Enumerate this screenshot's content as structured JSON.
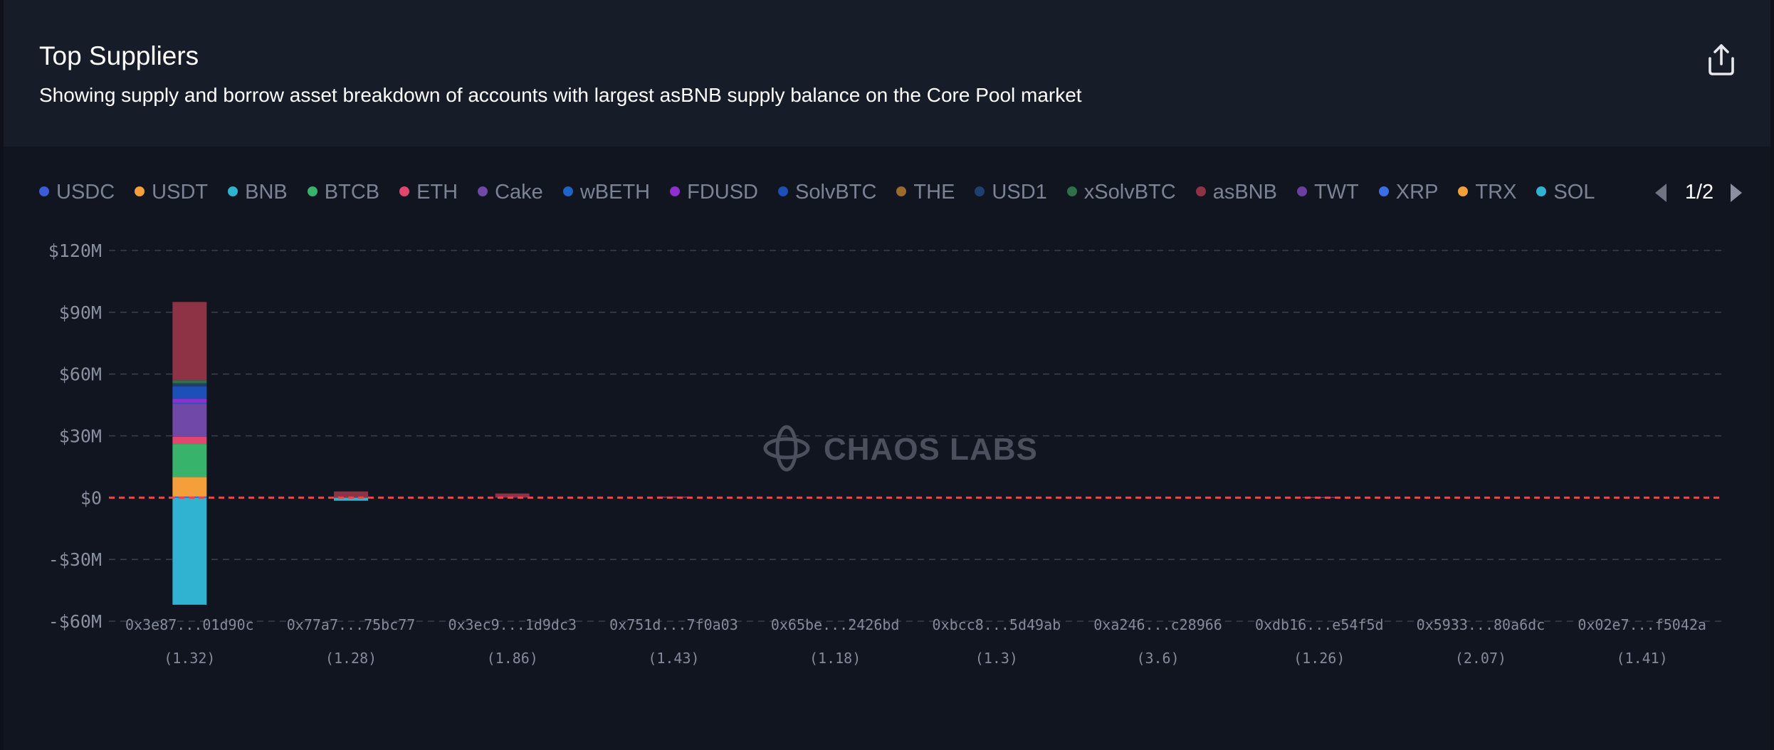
{
  "header": {
    "title": "Top Suppliers",
    "subtitle": "Showing supply and borrow asset breakdown of accounts with largest asBNB supply balance on the Core Pool market"
  },
  "icons": {
    "share": "share-export-icon",
    "prev": "chevron-left-icon",
    "next": "chevron-right-icon"
  },
  "pager": {
    "text": "1/2"
  },
  "watermark": {
    "text": "CHAOS LABS"
  },
  "legend": [
    {
      "name": "USDC",
      "color": "#3b5bdb"
    },
    {
      "name": "USDT",
      "color": "#f59f3a"
    },
    {
      "name": "BNB",
      "color": "#2fb3d1"
    },
    {
      "name": "BTCB",
      "color": "#37b36b"
    },
    {
      "name": "ETH",
      "color": "#e0466e"
    },
    {
      "name": "Cake",
      "color": "#7048a8"
    },
    {
      "name": "wBETH",
      "color": "#1f63c9"
    },
    {
      "name": "FDUSD",
      "color": "#8f2fcf"
    },
    {
      "name": "SolvBTC",
      "color": "#1d4fb8"
    },
    {
      "name": "THE",
      "color": "#9a6a2e"
    },
    {
      "name": "USD1",
      "color": "#1f3f70"
    },
    {
      "name": "xSolvBTC",
      "color": "#2f6f4a"
    },
    {
      "name": "asBNB",
      "color": "#8e3346"
    },
    {
      "name": "TWT",
      "color": "#6a3fa0"
    },
    {
      "name": "XRP",
      "color": "#3a6ee6"
    },
    {
      "name": "TRX",
      "color": "#f59f3a"
    },
    {
      "name": "SOL",
      "color": "#2fb3d1"
    }
  ],
  "chart_data": {
    "type": "bar",
    "stacked": true,
    "title": "Top Suppliers",
    "ylim": [
      -60,
      120
    ],
    "yticks": [
      -60,
      -30,
      0,
      30,
      60,
      90,
      120
    ],
    "ytick_labels": [
      "-$60M",
      "-$30M",
      "$0",
      "$30M",
      "$60M",
      "$90M",
      "$120M"
    ],
    "grid": true,
    "zero_line_color": "#e5484d",
    "categories": [
      "0x3e87...01d90c",
      "0x77a7...75bc77",
      "0x3ec9...1d9dc3",
      "0x751d...7f0a03",
      "0x65be...2426bd",
      "0xbcc8...5d49ab",
      "0xa246...c28966",
      "0xdb16...e54f5d",
      "0x5933...80a6dc",
      "0x02e7...f5042a"
    ],
    "sub_labels": [
      "(1.32)",
      "(1.28)",
      "(1.86)",
      "(1.43)",
      "(1.18)",
      "(1.3)",
      "(3.6)",
      "(1.26)",
      "(2.07)",
      "(1.41)"
    ],
    "series": [
      {
        "name": "USDC",
        "color": "#3b5bdb",
        "values": [
          0.5,
          0,
          0,
          0,
          0,
          0,
          0,
          0,
          0,
          0
        ]
      },
      {
        "name": "USDT",
        "color": "#f59f3a",
        "values": [
          9.5,
          0,
          0,
          0,
          0,
          0,
          0,
          0,
          0,
          0
        ]
      },
      {
        "name": "BNB",
        "color": "#2fb3d1",
        "values": [
          -52,
          -1.5,
          0,
          0,
          0,
          0,
          0,
          0,
          0,
          0
        ]
      },
      {
        "name": "BTCB",
        "color": "#37b36b",
        "values": [
          16,
          0,
          0,
          0,
          0,
          0,
          0,
          0,
          0,
          0
        ]
      },
      {
        "name": "ETH",
        "color": "#e0466e",
        "values": [
          3.5,
          0,
          0,
          0,
          0,
          0,
          0,
          0,
          0,
          0
        ]
      },
      {
        "name": "Cake",
        "color": "#7048a8",
        "values": [
          16,
          0,
          0,
          0,
          0,
          0,
          0,
          0,
          0,
          0
        ]
      },
      {
        "name": "wBETH",
        "color": "#1f63c9",
        "values": [
          0.5,
          0,
          0,
          0,
          0,
          0,
          0,
          0,
          0,
          0
        ]
      },
      {
        "name": "FDUSD",
        "color": "#8f2fcf",
        "values": [
          2,
          0,
          0,
          0,
          0,
          0,
          0,
          0,
          0,
          0
        ]
      },
      {
        "name": "SolvBTC",
        "color": "#1d4fb8",
        "values": [
          6,
          0,
          0,
          0,
          0,
          0,
          0,
          0,
          0,
          0
        ]
      },
      {
        "name": "THE",
        "color": "#9a6a2e",
        "values": [
          0,
          0,
          0,
          0,
          0,
          0,
          0,
          0,
          0,
          0
        ]
      },
      {
        "name": "USD1",
        "color": "#1f3f70",
        "values": [
          1.5,
          0,
          0,
          0,
          0,
          0,
          0,
          0,
          0,
          0
        ]
      },
      {
        "name": "xSolvBTC",
        "color": "#2f6f4a",
        "values": [
          1.5,
          0,
          0,
          0,
          0,
          0,
          0,
          0,
          0,
          0
        ]
      },
      {
        "name": "asBNB",
        "color": "#8e3346",
        "values": [
          38,
          3,
          2,
          0.5,
          0,
          0,
          0,
          0.3,
          0,
          0
        ]
      }
    ]
  }
}
